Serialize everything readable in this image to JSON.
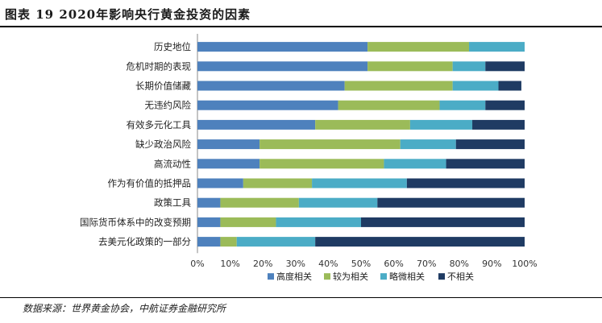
{
  "figure_title": "图表 19 2020年影响央行黄金投资的因素",
  "source_text": "数据来源：世界黄金协会，中航证券金融研究所",
  "colors": {
    "high": "#4e81bd",
    "medium": "#9bbb59",
    "slight": "#4bacc6",
    "none": "#1f3b63"
  },
  "chart_data": {
    "type": "bar",
    "orientation": "horizontal",
    "stacked": "percent",
    "categories": [
      "历史地位",
      "危机时期的表现",
      "长期价值储藏",
      "无违约风险",
      "有效多元化工具",
      "缺少政治风险",
      "高流动性",
      "作为有价值的抵押品",
      "政策工具",
      "国际货币体系中的改变预期",
      "去美元化政策的一部分"
    ],
    "series": [
      {
        "name": "高度相关",
        "values": [
          52,
          52,
          45,
          43,
          36,
          19,
          19,
          14,
          7,
          7,
          7
        ]
      },
      {
        "name": "较为相关",
        "values": [
          31,
          26,
          33,
          31,
          29,
          43,
          38,
          21,
          24,
          17,
          5
        ]
      },
      {
        "name": "略微相关",
        "values": [
          17,
          10,
          14,
          14,
          19,
          17,
          19,
          29,
          24,
          26,
          24
        ]
      },
      {
        "name": "不相关",
        "values": [
          0,
          12,
          7,
          12,
          16,
          21,
          24,
          36,
          45,
          50,
          64
        ]
      }
    ],
    "xlim": [
      0,
      100
    ],
    "x_ticks": [
      "0%",
      "10%",
      "20%",
      "30%",
      "40%",
      "50%",
      "60%",
      "70%",
      "80%",
      "90%",
      "100%"
    ],
    "legend": "bottom",
    "grid": false
  }
}
